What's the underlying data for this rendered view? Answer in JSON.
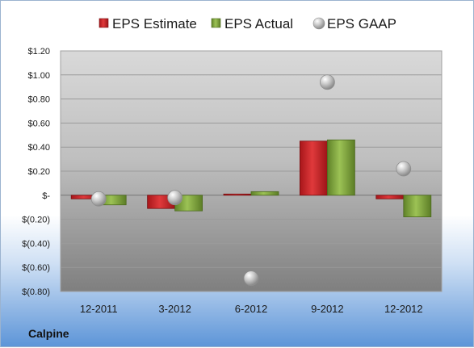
{
  "company": "Calpine",
  "chart_data": {
    "type": "bar",
    "categories": [
      "12-2011",
      "3-2012",
      "6-2012",
      "9-2012",
      "12-2012"
    ],
    "series": [
      {
        "name": "EPS Estimate",
        "kind": "bar",
        "color": "#c8201e",
        "values": [
          -0.03,
          -0.11,
          0.01,
          0.45,
          -0.03
        ]
      },
      {
        "name": "EPS Actual",
        "kind": "bar",
        "color": "#7fa33c",
        "values": [
          -0.08,
          -0.13,
          0.03,
          0.46,
          -0.18
        ]
      },
      {
        "name": "EPS GAAP",
        "kind": "marker",
        "color": "#b8b8b8",
        "values": [
          -0.03,
          -0.02,
          -0.69,
          0.94,
          0.22
        ]
      }
    ],
    "yticks": [
      "$1.20",
      "$1.00",
      "$0.80",
      "$0.60",
      "$0.40",
      "$0.20",
      "$-",
      "$(0.20)",
      "$(0.40)",
      "$(0.60)",
      "$(0.80)"
    ],
    "ylim": [
      -0.8,
      1.2
    ],
    "ytick_step": 0.2,
    "grid": true,
    "legend_position": "top"
  }
}
